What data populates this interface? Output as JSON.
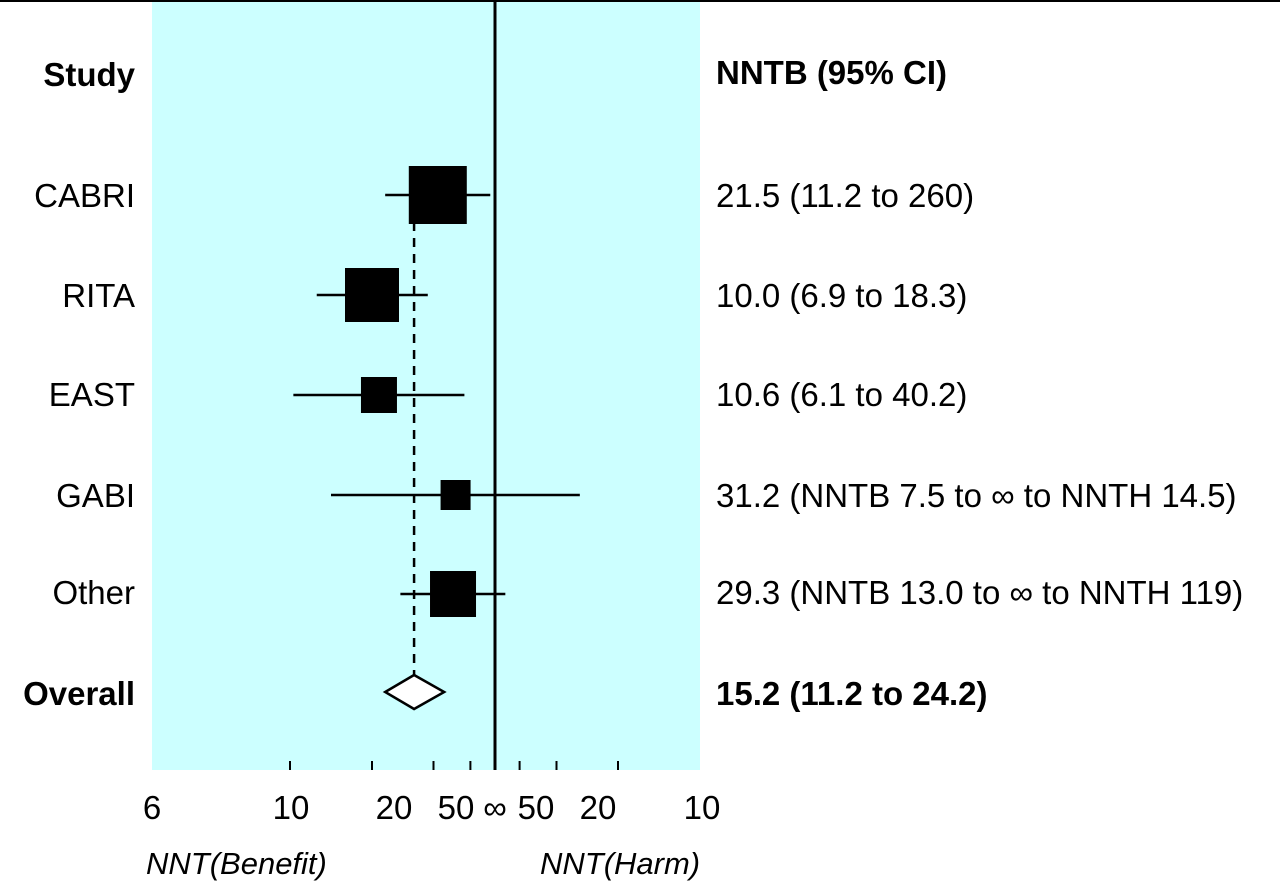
{
  "chart_data": {
    "type": "forest",
    "column_headers": {
      "study": "Study",
      "estimate": "NNTB (95% CI)"
    },
    "axis": {
      "scale": "reciprocal",
      "tick_labels": [
        "6",
        "10",
        "20",
        "50",
        "∞",
        "50",
        "20",
        "10"
      ],
      "xlabel_left": "NNT(Benefit)",
      "xlabel_right": "NNT(Harm)"
    },
    "studies": [
      {
        "name": "CABRI",
        "nntb": 21.5,
        "ci_benefit": [
          11.2,
          260
        ],
        "ci_label": "21.5 (11.2 to 260)"
      },
      {
        "name": "RITA",
        "nntb": 10.0,
        "ci_benefit": [
          6.9,
          18.3
        ],
        "ci_label": "10.0 (6.9 to 18.3)"
      },
      {
        "name": "EAST",
        "nntb": 10.6,
        "ci_benefit": [
          6.1,
          40.2
        ],
        "ci_label": "10.6 (6.1 to 40.2)"
      },
      {
        "name": "GABI",
        "nntb": 31.2,
        "ci_benefit_low": 7.5,
        "ci_harm_high": 14.5,
        "ci_label": "31.2 (NNTB 7.5 to ∞ to NNTH 14.5)"
      },
      {
        "name": "Other",
        "nntb": 29.3,
        "ci_benefit_low": 13.0,
        "ci_harm_high": 119,
        "ci_label": "29.3 (NNTB 13.0 to ∞ to NNTH 119)"
      }
    ],
    "overall": {
      "name": "Overall",
      "nntb": 15.2,
      "ci_benefit": [
        11.2,
        24.2
      ],
      "ci_label": "15.2 (11.2 to 24.2)"
    },
    "plot_background": "#ccffff"
  }
}
